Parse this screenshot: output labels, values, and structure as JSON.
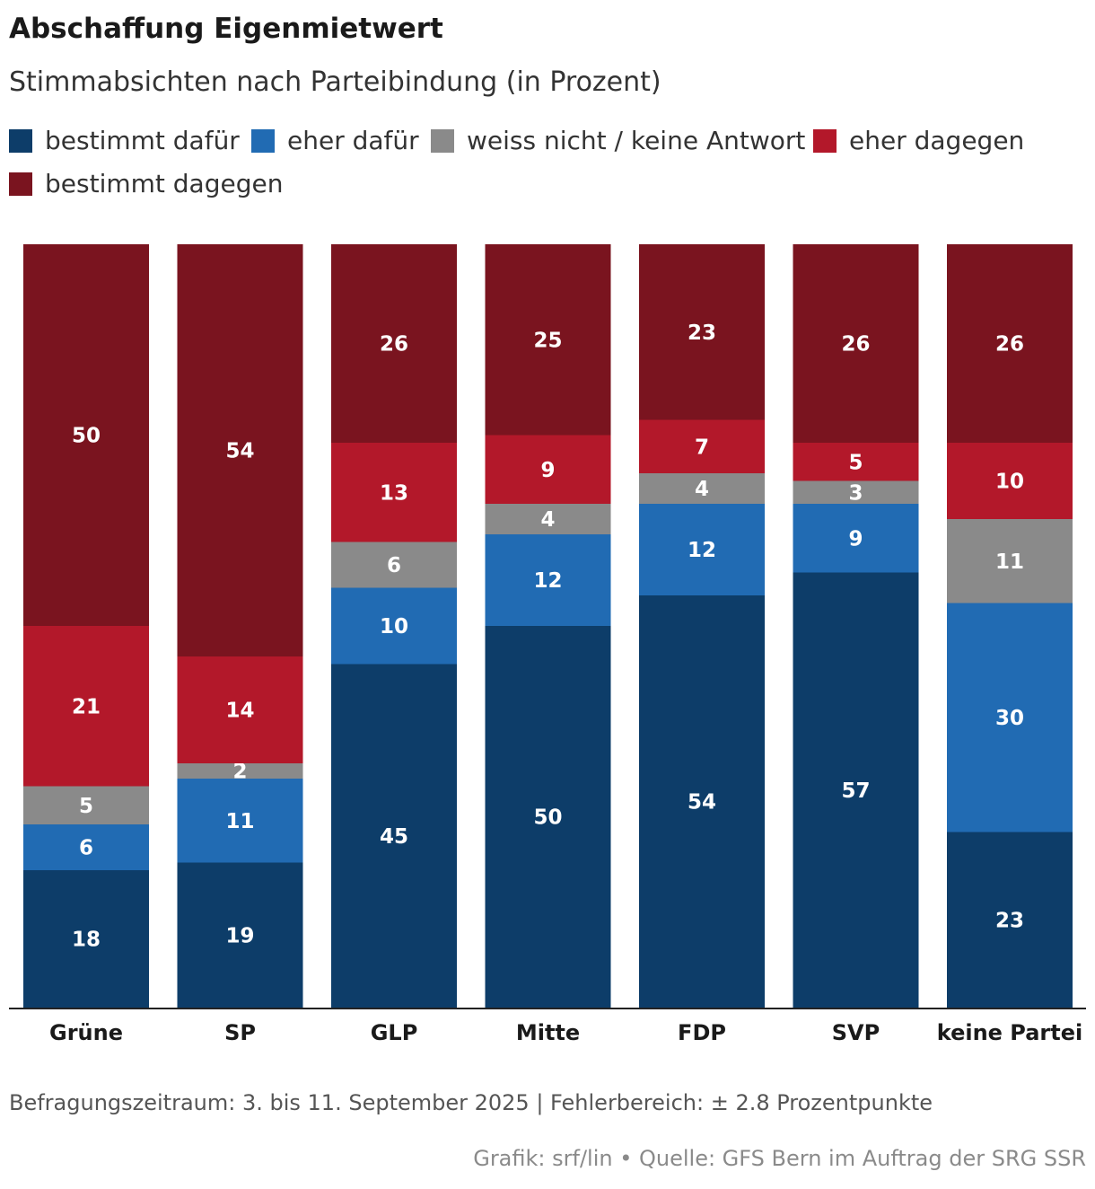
{
  "title": "Abschaffung Eigenmietwert",
  "subtitle": "Stimmabsichten nach Parteibindung (in Prozent)",
  "footnote": "Befragungszeitraum: 3. bis 11. September 2025 | Fehlerbereich: ± 2.8 Prozentpunkte",
  "credit": "Grafik: srf/lin • Quelle: GFS Bern im Auftrag der SRG SSR",
  "legend": [
    {
      "label": "bestimmt dafür",
      "color": "#0d3d69"
    },
    {
      "label": "eher dafür",
      "color": "#216bb3"
    },
    {
      "label": "weiss nicht / keine Antwort",
      "color": "#8a8a8a"
    },
    {
      "label": "eher dagegen",
      "color": "#b3182a"
    },
    {
      "label": "bestimmt dagegen",
      "color": "#7a141f"
    }
  ],
  "chart_data": {
    "type": "bar",
    "stacked": true,
    "title": "Abschaffung Eigenmietwert",
    "subtitle": "Stimmabsichten nach Parteibindung (in Prozent)",
    "categories": [
      "Grüne",
      "SP",
      "GLP",
      "Mitte",
      "FDP",
      "SVP",
      "keine Partei"
    ],
    "ylim": [
      0,
      100
    ],
    "grid": false,
    "legend_position": "top-left",
    "series": [
      {
        "name": "bestimmt dafür",
        "color": "#0d3d69",
        "values": [
          18,
          19,
          45,
          50,
          54,
          57,
          23
        ]
      },
      {
        "name": "eher dafür",
        "color": "#216bb3",
        "values": [
          6,
          11,
          10,
          12,
          12,
          9,
          30
        ]
      },
      {
        "name": "weiss nicht / keine Antwort",
        "color": "#8a8a8a",
        "values": [
          5,
          2,
          6,
          4,
          4,
          3,
          11
        ]
      },
      {
        "name": "eher dagegen",
        "color": "#b3182a",
        "values": [
          21,
          14,
          13,
          9,
          7,
          5,
          10
        ]
      },
      {
        "name": "bestimmt dagegen",
        "color": "#7a141f",
        "values": [
          50,
          54,
          26,
          25,
          23,
          26,
          26
        ]
      }
    ]
  }
}
